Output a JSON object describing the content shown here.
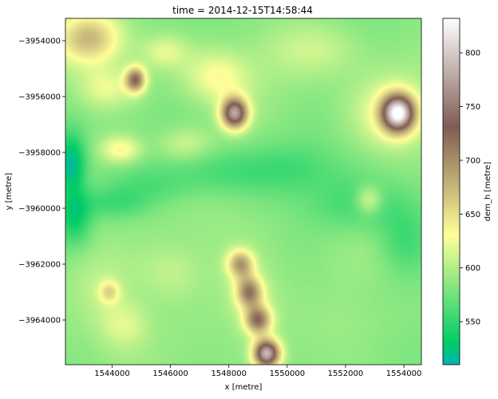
{
  "chart_data": {
    "type": "heatmap",
    "title": "time = 2014-12-15T14:58:44",
    "xlabel": "x [metre]",
    "ylabel": "y [metre]",
    "colorbar_label": "dem_h [metre]",
    "colormap": "terrain",
    "xlim": [
      1542400,
      1554600
    ],
    "ylim": [
      -3965600,
      -3953200
    ],
    "x_ticks": [
      1544000,
      1546000,
      1548000,
      1550000,
      1552000,
      1554000
    ],
    "x_tick_labels": [
      "1544000",
      "1546000",
      "1548000",
      "1550000",
      "1552000",
      "1554000"
    ],
    "y_ticks": [
      -3954000,
      -3956000,
      -3958000,
      -3960000,
      -3962000,
      -3964000
    ],
    "y_tick_labels": [
      "−3954000",
      "−3956000",
      "−3958000",
      "−3960000",
      "−3962000",
      "−3964000"
    ],
    "colorbar_range": [
      510,
      832
    ],
    "colorbar_ticks": [
      550,
      600,
      650,
      700,
      750,
      800
    ],
    "colorbar_tick_labels": [
      "550",
      "600",
      "650",
      "700",
      "750",
      "800"
    ],
    "grid": false,
    "base_elevation": 585,
    "features": [
      {
        "x": 1542600,
        "y": -3958400,
        "sx": 500,
        "sy": 1100,
        "h": -72
      },
      {
        "x": 1542700,
        "y": -3960300,
        "sx": 600,
        "sy": 1000,
        "h": -55
      },
      {
        "x": 1544000,
        "y": -3959800,
        "sx": 1200,
        "sy": 600,
        "h": -28
      },
      {
        "x": 1545500,
        "y": -3959200,
        "sx": 1400,
        "sy": 700,
        "h": -18
      },
      {
        "x": 1547500,
        "y": -3958700,
        "sx": 1600,
        "sy": 800,
        "h": -22
      },
      {
        "x": 1550000,
        "y": -3958600,
        "sx": 1700,
        "sy": 900,
        "h": -25
      },
      {
        "x": 1552500,
        "y": -3959900,
        "sx": 1800,
        "sy": 1000,
        "h": -28
      },
      {
        "x": 1554000,
        "y": -3961200,
        "sx": 900,
        "sy": 1200,
        "h": -30
      },
      {
        "x": 1543200,
        "y": -3953900,
        "sx": 1100,
        "sy": 900,
        "h": 85
      },
      {
        "x": 1543800,
        "y": -3955700,
        "sx": 900,
        "sy": 700,
        "h": 35
      },
      {
        "x": 1544800,
        "y": -3955400,
        "sx": 350,
        "sy": 450,
        "h": 130
      },
      {
        "x": 1545800,
        "y": -3954400,
        "sx": 800,
        "sy": 600,
        "h": 35
      },
      {
        "x": 1547600,
        "y": -3955300,
        "sx": 1100,
        "sy": 900,
        "h": 45
      },
      {
        "x": 1548200,
        "y": -3956600,
        "sx": 450,
        "sy": 550,
        "h": 185
      },
      {
        "x": 1546500,
        "y": -3957700,
        "sx": 900,
        "sy": 600,
        "h": 30
      },
      {
        "x": 1544300,
        "y": -3957900,
        "sx": 700,
        "sy": 500,
        "h": 55
      },
      {
        "x": 1551000,
        "y": -3954300,
        "sx": 1800,
        "sy": 1000,
        "h": 25
      },
      {
        "x": 1553800,
        "y": -3956600,
        "sx": 550,
        "sy": 650,
        "h": 220
      },
      {
        "x": 1553600,
        "y": -3956600,
        "sx": 1300,
        "sy": 1300,
        "h": 40
      },
      {
        "x": 1552800,
        "y": -3959700,
        "sx": 450,
        "sy": 500,
        "h": 50
      },
      {
        "x": 1543600,
        "y": -3962800,
        "sx": 1200,
        "sy": 1400,
        "h": 25
      },
      {
        "x": 1544400,
        "y": -3964200,
        "sx": 900,
        "sy": 900,
        "h": 35
      },
      {
        "x": 1543900,
        "y": -3963000,
        "sx": 350,
        "sy": 400,
        "h": 55
      },
      {
        "x": 1546000,
        "y": -3962300,
        "sx": 1100,
        "sy": 1000,
        "h": 20
      },
      {
        "x": 1548400,
        "y": -3962000,
        "sx": 450,
        "sy": 500,
        "h": 100
      },
      {
        "x": 1548700,
        "y": -3963000,
        "sx": 450,
        "sy": 550,
        "h": 115
      },
      {
        "x": 1549000,
        "y": -3964000,
        "sx": 450,
        "sy": 500,
        "h": 125
      },
      {
        "x": 1549300,
        "y": -3965200,
        "sx": 450,
        "sy": 500,
        "h": 200
      },
      {
        "x": 1548800,
        "y": -3963500,
        "sx": 1200,
        "sy": 1500,
        "h": 25
      },
      {
        "x": 1552500,
        "y": -3964200,
        "sx": 1600,
        "sy": 1000,
        "h": 8
      }
    ]
  }
}
